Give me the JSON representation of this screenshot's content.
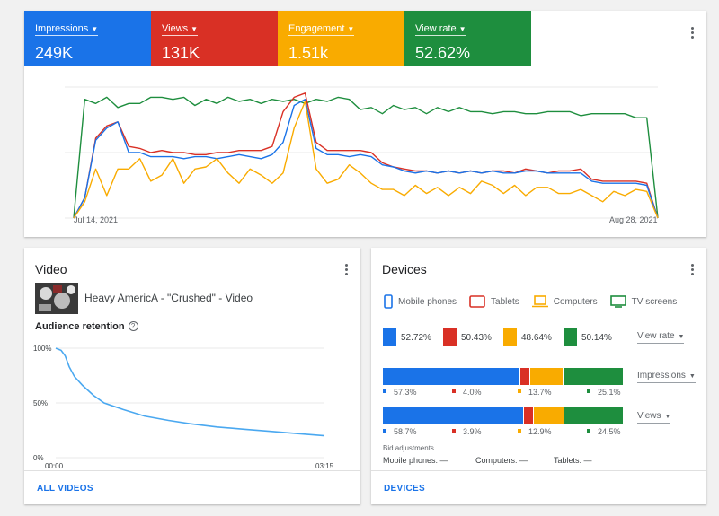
{
  "metrics": [
    {
      "label": "Impressions",
      "value": "249K",
      "color": "#1a73e8"
    },
    {
      "label": "Views",
      "value": "131K",
      "color": "#d93025"
    },
    {
      "label": "Engagement",
      "value": "1.51k",
      "color": "#f9ab00"
    },
    {
      "label": "View rate",
      "value": "52.62%",
      "color": "#1e8e3e"
    }
  ],
  "chart_data": {
    "type": "line",
    "x_start_label": "Jul 14, 2021",
    "x_end_label": "Aug 28, 2021",
    "series": [
      {
        "name": "View rate",
        "color": "#1e8e3e",
        "values": [
          0,
          58,
          56,
          59,
          54,
          56,
          56,
          59,
          59,
          58,
          59,
          55,
          58,
          56,
          59,
          57,
          58,
          56,
          58,
          57,
          58,
          56,
          58,
          57,
          59,
          58,
          53,
          54,
          51,
          55,
          53,
          54,
          51,
          54,
          52,
          54,
          52,
          52,
          51,
          52,
          52,
          51,
          51,
          52,
          52,
          52,
          50,
          51,
          51,
          51,
          51,
          49,
          49,
          0
        ]
      },
      {
        "name": "Views",
        "color": "#d93025",
        "values": [
          0,
          10,
          39,
          45,
          47,
          35,
          34,
          32,
          33,
          32,
          32,
          31,
          31,
          32,
          32,
          33,
          33,
          33,
          35,
          52,
          59,
          61,
          37,
          33,
          33,
          33,
          33,
          32,
          27,
          25,
          24,
          23,
          23,
          22,
          23,
          22,
          23,
          22,
          23,
          23,
          22,
          24,
          23,
          22,
          23,
          23,
          24,
          19,
          18,
          18,
          18,
          18,
          17,
          0
        ]
      },
      {
        "name": "Impressions",
        "color": "#1a73e8",
        "values": [
          0,
          10,
          38,
          44,
          47,
          32,
          32,
          30,
          30,
          30,
          29,
          30,
          30,
          29,
          30,
          31,
          30,
          29,
          31,
          37,
          55,
          58,
          34,
          31,
          31,
          30,
          31,
          30,
          26,
          25,
          23,
          22,
          23,
          22,
          23,
          22,
          23,
          22,
          23,
          22,
          22,
          23,
          23,
          22,
          22,
          22,
          22,
          18,
          17,
          17,
          17,
          17,
          16,
          0
        ]
      },
      {
        "name": "Engagement",
        "color": "#f9ab00",
        "values": [
          0,
          8,
          24,
          11,
          24,
          24,
          29,
          18,
          21,
          29,
          17,
          24,
          25,
          29,
          22,
          17,
          24,
          21,
          17,
          22,
          44,
          57,
          24,
          17,
          19,
          26,
          22,
          17,
          14,
          14,
          11,
          16,
          12,
          15,
          11,
          15,
          12,
          18,
          16,
          12,
          16,
          11,
          15,
          15,
          12,
          12,
          14,
          11,
          8,
          13,
          11,
          14,
          13,
          0
        ]
      }
    ],
    "ylim": [
      0,
      64
    ],
    "grid": true
  },
  "video": {
    "title": "Video",
    "video_title": "Heavy AmericA - \"Crushed\" - Video",
    "retention_title": "Audience retention",
    "help_icon": "?",
    "retention_chart": {
      "type": "line",
      "y_tick_labels": [
        "100%",
        "50%",
        "0%"
      ],
      "x_tick_labels": [
        "00:00",
        "03:15"
      ],
      "x_fraction": [
        0,
        0.02,
        0.035,
        0.05,
        0.07,
        0.1,
        0.14,
        0.18,
        0.25,
        0.33,
        0.42,
        0.5,
        0.6,
        0.7,
        0.8,
        0.9,
        1.0
      ],
      "y_percent": [
        100,
        98,
        93,
        83,
        74,
        66,
        57,
        50,
        44,
        38,
        34,
        31,
        28,
        26,
        24,
        22,
        20
      ],
      "color": "#4aa8f0"
    },
    "footer_link": "ALL VIDEOS"
  },
  "devices": {
    "title": "Devices",
    "legend": [
      {
        "label": "Mobile phones",
        "icon": "mobile-phone-icon",
        "color": "#1a73e8"
      },
      {
        "label": "Tablets",
        "icon": "tablet-icon",
        "color": "#d93025"
      },
      {
        "label": "Computers",
        "icon": "computer-icon",
        "color": "#f9ab00"
      },
      {
        "label": "TV screens",
        "icon": "tv-screen-icon",
        "color": "#1e8e3e"
      }
    ],
    "view_rate_values": [
      "52.72%",
      "50.43%",
      "48.64%",
      "50.14%"
    ],
    "view_rate_dropdown": "View rate",
    "impressions_dropdown": "Impressions",
    "views_dropdown": "Views",
    "impressions_split": [
      57.3,
      4.0,
      13.7,
      25.1
    ],
    "impressions_labels": [
      "57.3%",
      "4.0%",
      "13.7%",
      "25.1%"
    ],
    "views_split": [
      58.7,
      3.9,
      12.9,
      24.5
    ],
    "views_labels": [
      "58.7%",
      "3.9%",
      "12.9%",
      "24.5%"
    ],
    "bid_title": "Bid adjustments",
    "bid_items": [
      "Mobile phones: —",
      "Computers: —",
      "Tablets: —"
    ],
    "footer_link": "DEVICES"
  }
}
